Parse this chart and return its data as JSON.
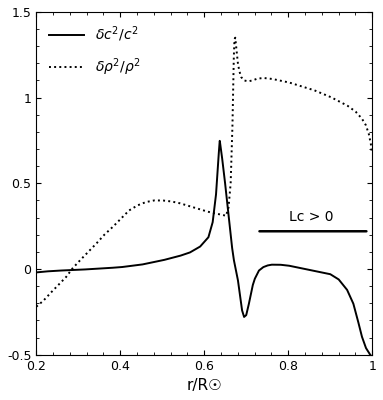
{
  "xlim": [
    0.2,
    1.0
  ],
  "ylim": [
    -0.5,
    1.5
  ],
  "xlabel": "r/R☉",
  "xticks": [
    0.2,
    0.4,
    0.6,
    0.8,
    1.0
  ],
  "yticks": [
    -0.5,
    0.0,
    0.5,
    1.0,
    1.5
  ],
  "legend_solid": "δc²/c²",
  "legend_dotted": "δρ²/ρ²",
  "annotation": "Lc > 0",
  "line_color": "#000000",
  "background_color": "#ffffff"
}
